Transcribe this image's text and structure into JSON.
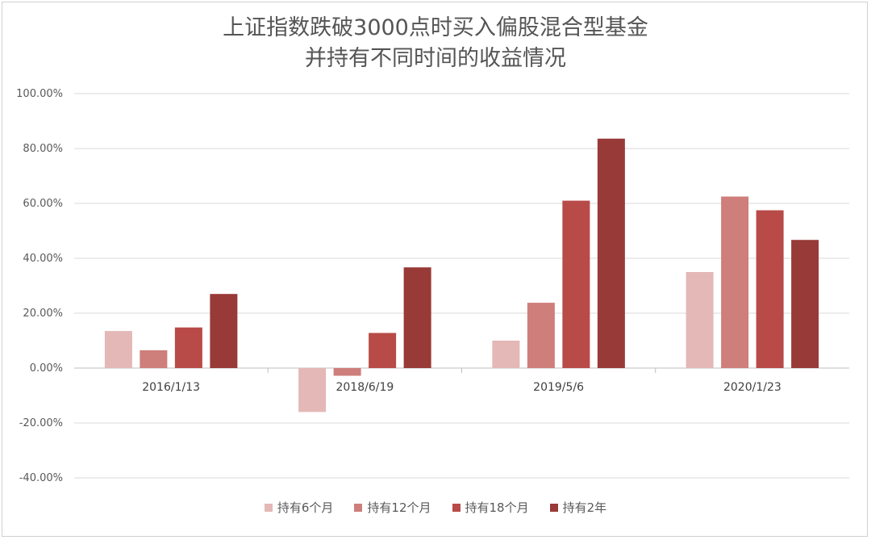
{
  "chart_data": {
    "type": "bar",
    "title_lines": [
      "上证指数跌破3000点时买入偏股混合型基金",
      "并持有不同时间的收益情况"
    ],
    "categories": [
      "2016/1/13",
      "2018/6/19",
      "2019/5/6",
      "2020/1/23"
    ],
    "series": [
      {
        "name": "持有6个月",
        "color": "#E3B8B6",
        "values": [
          13.5,
          -16.0,
          10.0,
          35.0
        ]
      },
      {
        "name": "持有12个月",
        "color": "#CE7E7B",
        "values": [
          6.5,
          -2.8,
          23.8,
          62.5
        ]
      },
      {
        "name": "持有18个月",
        "color": "#B84B47",
        "values": [
          14.8,
          12.8,
          61.0,
          57.5
        ]
      },
      {
        "name": "持有2年",
        "color": "#983A37",
        "values": [
          27.0,
          36.7,
          83.6,
          46.7
        ]
      }
    ],
    "ylim": [
      -40,
      100
    ],
    "yticks": [
      100,
      80,
      60,
      40,
      20,
      0,
      -20,
      -40
    ],
    "ytick_labels": [
      "100.00%",
      "80.00%",
      "60.00%",
      "40.00%",
      "20.00%",
      "0.00%",
      "-20.00%",
      "-40.00%"
    ],
    "grid": true,
    "legend_position": "bottom"
  }
}
